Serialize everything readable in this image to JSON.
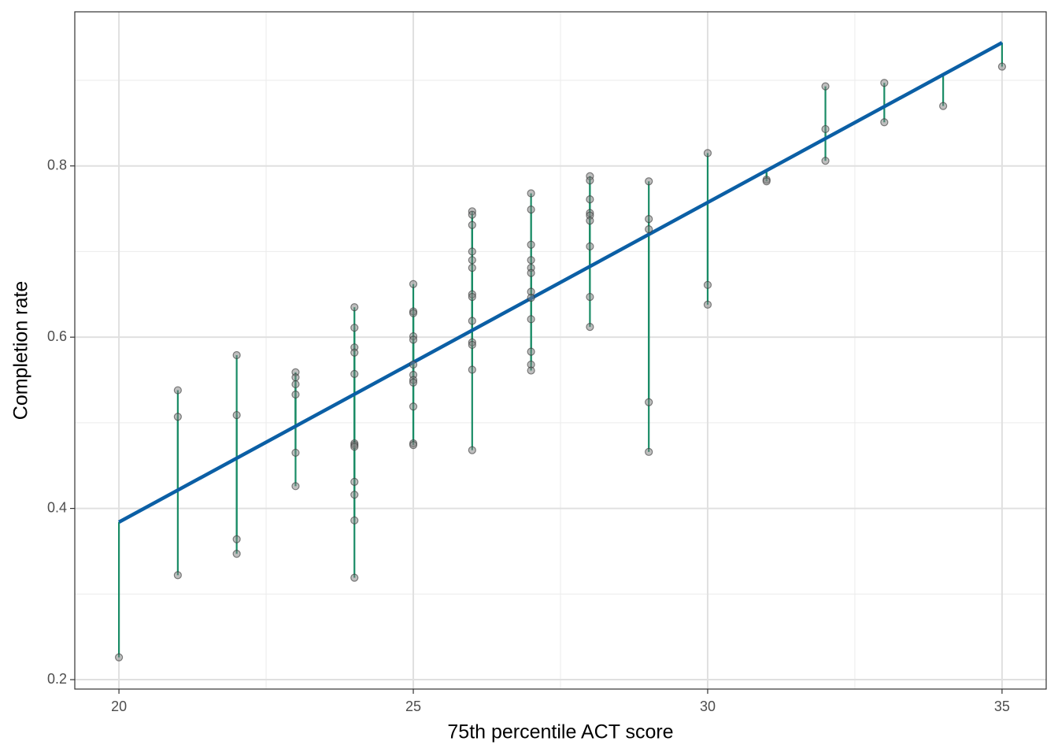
{
  "chart_data": {
    "type": "scatter",
    "x_label": "75th percentile ACT score",
    "y_label": "Completion rate",
    "xlim": [
      19.25,
      35.75
    ],
    "ylim": [
      0.189,
      0.98
    ],
    "xticks": [
      20,
      25,
      30,
      35
    ],
    "yticks": [
      0.2,
      0.4,
      0.6,
      0.8
    ],
    "xminorticks": [
      22.5,
      27.5,
      32.5
    ],
    "yminorticks": [
      0.3,
      0.5,
      0.7,
      0.9
    ],
    "grid": true,
    "series": [
      {
        "color": "#808080",
        "residual_color": "#1a8c66",
        "x": [
          20,
          21,
          21,
          21,
          22,
          22,
          22,
          22,
          23,
          23,
          23,
          23,
          23,
          23,
          24,
          24,
          24,
          24,
          24,
          24,
          24,
          24,
          24,
          24,
          24,
          24,
          25,
          25,
          25,
          25,
          25,
          25,
          25,
          25,
          25,
          25,
          25,
          25,
          26,
          26,
          26,
          26,
          26,
          26,
          26,
          26,
          26,
          26,
          26,
          26,
          26,
          27,
          27,
          27,
          27,
          27,
          27,
          27,
          27,
          27,
          27,
          27,
          27,
          28,
          28,
          28,
          28,
          28,
          28,
          28,
          28,
          28,
          29,
          29,
          29,
          29,
          29,
          30,
          30,
          30,
          31,
          31,
          32,
          32,
          32,
          33,
          33,
          34,
          35
        ],
        "values": [
          0.226,
          0.538,
          0.507,
          0.322,
          0.579,
          0.509,
          0.364,
          0.347,
          0.559,
          0.553,
          0.545,
          0.533,
          0.465,
          0.426,
          0.635,
          0.611,
          0.588,
          0.582,
          0.557,
          0.476,
          0.474,
          0.472,
          0.431,
          0.416,
          0.386,
          0.319,
          0.662,
          0.63,
          0.628,
          0.601,
          0.597,
          0.568,
          0.556,
          0.55,
          0.547,
          0.519,
          0.476,
          0.474,
          0.747,
          0.743,
          0.731,
          0.7,
          0.69,
          0.681,
          0.65,
          0.647,
          0.619,
          0.594,
          0.591,
          0.562,
          0.468,
          0.768,
          0.749,
          0.708,
          0.69,
          0.681,
          0.675,
          0.653,
          0.646,
          0.621,
          0.583,
          0.568,
          0.561,
          0.788,
          0.783,
          0.761,
          0.745,
          0.742,
          0.736,
          0.706,
          0.647,
          0.612,
          0.782,
          0.738,
          0.726,
          0.524,
          0.466,
          0.815,
          0.661,
          0.638,
          0.784,
          0.782,
          0.893,
          0.843,
          0.806,
          0.897,
          0.851,
          0.87,
          0.916
        ]
      }
    ],
    "trend_line": {
      "x": [
        20,
        35
      ],
      "values": [
        0.384,
        0.944
      ],
      "color": "#0b5fa5"
    }
  }
}
